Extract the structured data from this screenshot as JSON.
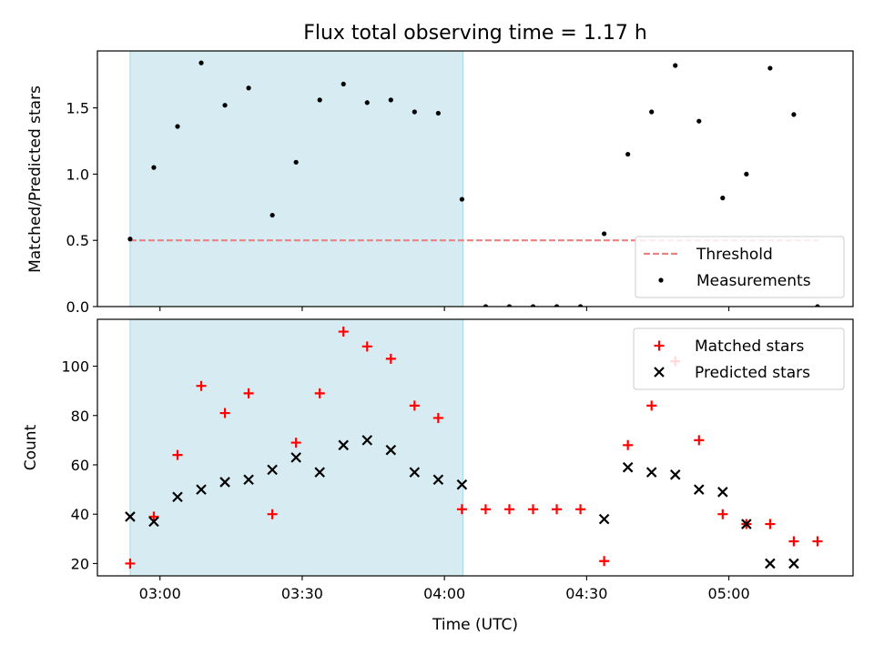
{
  "figure": {
    "title": "Flux total observing time = 1.17 h"
  },
  "colors": {
    "shade": "#add8e6",
    "threshold": "#f08080",
    "measurement": "#000000",
    "matched": "#ff0000",
    "predicted": "#000000"
  },
  "chart_data": [
    {
      "type": "scatter",
      "panel": "top",
      "ylabel": "Matched/Predicted stars",
      "xlabel": "",
      "x_ticks": [
        "03:00",
        "03:30",
        "04:00",
        "04:30",
        "05:00"
      ],
      "x_tick_minutes": [
        180,
        210,
        240,
        270,
        300
      ],
      "xlim_minutes": [
        166.8,
        326.2
      ],
      "ylim": [
        0,
        1.93
      ],
      "y_ticks": [
        0.0,
        0.5,
        1.0,
        1.5
      ],
      "y_tick_labels": [
        "0.0",
        "0.5",
        "1.0",
        "1.5"
      ],
      "shaded_interval_minutes": [
        173.7,
        243.9
      ],
      "legend": {
        "placement": "lower right",
        "entries": [
          "Threshold",
          "Measurements"
        ]
      },
      "threshold": {
        "name": "Threshold",
        "value": 0.5,
        "x_range_minutes": [
          173.7,
          318.9
        ]
      },
      "series": [
        {
          "name": "Measurements",
          "x_minutes": [
            173.7,
            178.7,
            183.7,
            188.7,
            193.7,
            198.7,
            203.7,
            208.7,
            213.7,
            218.7,
            223.7,
            228.7,
            233.7,
            238.7,
            243.7,
            248.7,
            253.7,
            258.7,
            263.7,
            268.7,
            273.7,
            278.7,
            283.7,
            288.7,
            293.7,
            298.7,
            303.7,
            308.7,
            313.7,
            318.7
          ],
          "y": [
            0.51,
            1.05,
            1.36,
            1.84,
            1.52,
            1.65,
            0.69,
            1.09,
            1.56,
            1.68,
            1.54,
            1.56,
            1.47,
            1.46,
            0.81,
            0.0,
            0.0,
            0.0,
            0.0,
            0.0,
            0.55,
            1.15,
            1.47,
            1.82,
            1.4,
            0.82,
            1.0,
            1.8,
            1.45,
            0.0
          ]
        }
      ]
    },
    {
      "type": "scatter",
      "panel": "bottom",
      "ylabel": "Count",
      "xlabel": "Time (UTC)",
      "x_ticks": [
        "03:00",
        "03:30",
        "04:00",
        "04:30",
        "05:00"
      ],
      "x_tick_minutes": [
        180,
        210,
        240,
        270,
        300
      ],
      "xlim_minutes": [
        166.8,
        326.2
      ],
      "ylim": [
        15,
        119
      ],
      "y_ticks": [
        20,
        40,
        60,
        80,
        100
      ],
      "y_tick_labels": [
        "20",
        "40",
        "60",
        "80",
        "100"
      ],
      "shaded_interval_minutes": [
        173.7,
        243.9
      ],
      "legend": {
        "placement": "upper right",
        "entries": [
          "Matched stars",
          "Predicted stars"
        ]
      },
      "series": [
        {
          "name": "Matched stars",
          "marker": "plus",
          "x_minutes": [
            173.7,
            178.7,
            183.7,
            188.7,
            193.7,
            198.7,
            203.7,
            208.7,
            213.7,
            218.7,
            223.7,
            228.7,
            233.7,
            238.7,
            243.7,
            248.7,
            253.7,
            258.7,
            263.7,
            268.7,
            273.7,
            278.7,
            283.7,
            288.7,
            293.7,
            298.7,
            303.7,
            308.7,
            313.7,
            318.7
          ],
          "y": [
            20,
            39,
            64,
            92,
            81,
            89,
            40,
            69,
            89,
            114,
            108,
            103,
            84,
            79,
            42,
            42,
            42,
            42,
            42,
            42,
            21,
            68,
            84,
            102,
            70,
            40,
            36,
            36,
            29,
            29
          ]
        },
        {
          "name": "Predicted stars",
          "marker": "x",
          "x_minutes": [
            173.7,
            178.7,
            183.7,
            188.7,
            193.7,
            198.7,
            203.7,
            208.7,
            213.7,
            218.7,
            223.7,
            228.7,
            233.7,
            238.7,
            243.7,
            273.7,
            278.7,
            283.7,
            288.7,
            293.7,
            298.7,
            303.7,
            308.7,
            313.7
          ],
          "y": [
            39,
            37,
            47,
            50,
            53,
            54,
            58,
            63,
            57,
            68,
            70,
            66,
            57,
            54,
            52,
            38,
            59,
            57,
            56,
            50,
            49,
            36,
            20,
            20
          ]
        }
      ]
    }
  ]
}
